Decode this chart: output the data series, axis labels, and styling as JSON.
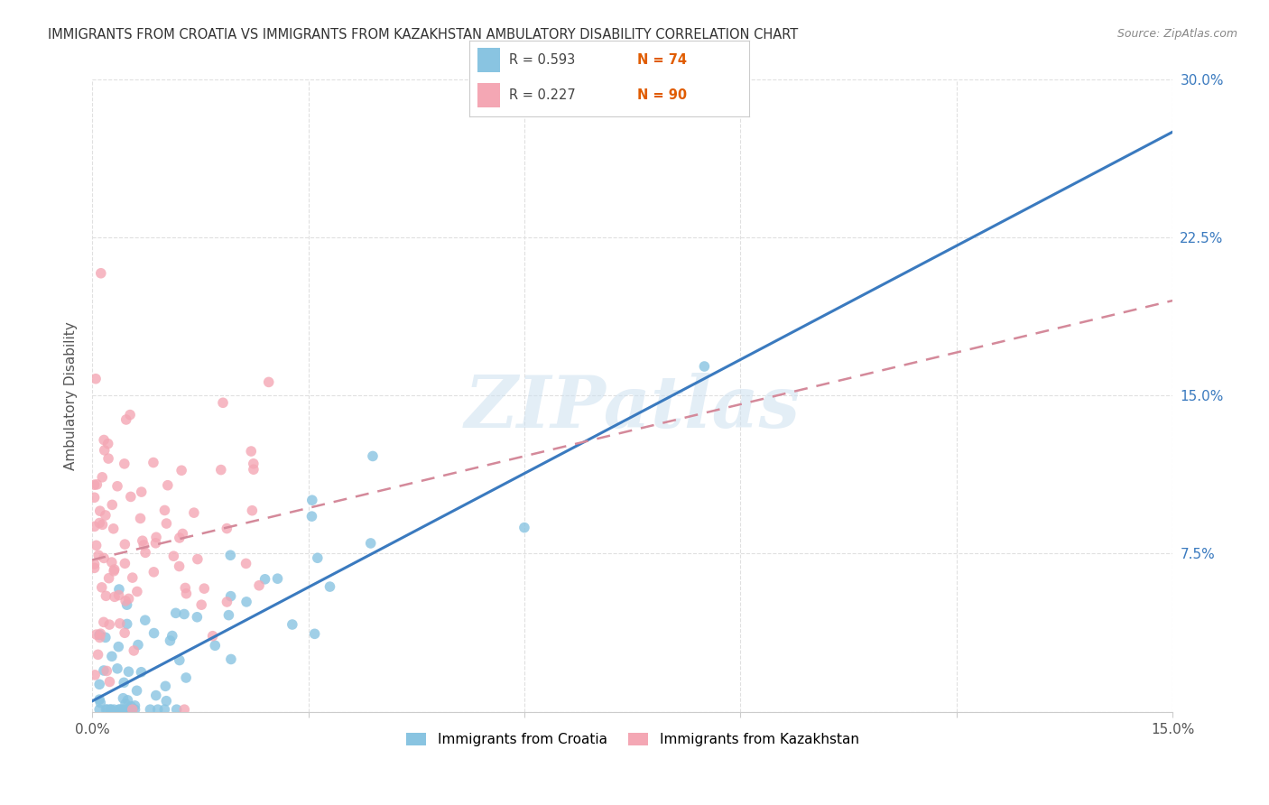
{
  "title": "IMMIGRANTS FROM CROATIA VS IMMIGRANTS FROM KAZAKHSTAN AMBULATORY DISABILITY CORRELATION CHART",
  "source": "Source: ZipAtlas.com",
  "ylabel": "Ambulatory Disability",
  "x_min": 0.0,
  "x_max": 0.15,
  "y_min": 0.0,
  "y_max": 0.3,
  "croatia_color": "#89c4e1",
  "kazakhstan_color": "#f4a7b4",
  "croatia_R": 0.593,
  "croatia_N": 74,
  "kazakhstan_R": 0.227,
  "kazakhstan_N": 90,
  "croatia_line_color": "#3a7abf",
  "kazakhstan_line_color": "#d4899a",
  "croatia_line_y0": 0.005,
  "croatia_line_y1": 0.275,
  "kazakhstan_line_y0": 0.072,
  "kazakhstan_line_y1": 0.195,
  "watermark": "ZIPatlas",
  "background_color": "#ffffff",
  "grid_color": "#e0e0e0",
  "tick_color_right": "#3a7abf",
  "legend_R_color": "#3a7abf",
  "legend_N_color": "#e05c00",
  "title_fontsize": 10.5,
  "source_fontsize": 9,
  "axis_fontsize": 11,
  "ylabel_fontsize": 11
}
